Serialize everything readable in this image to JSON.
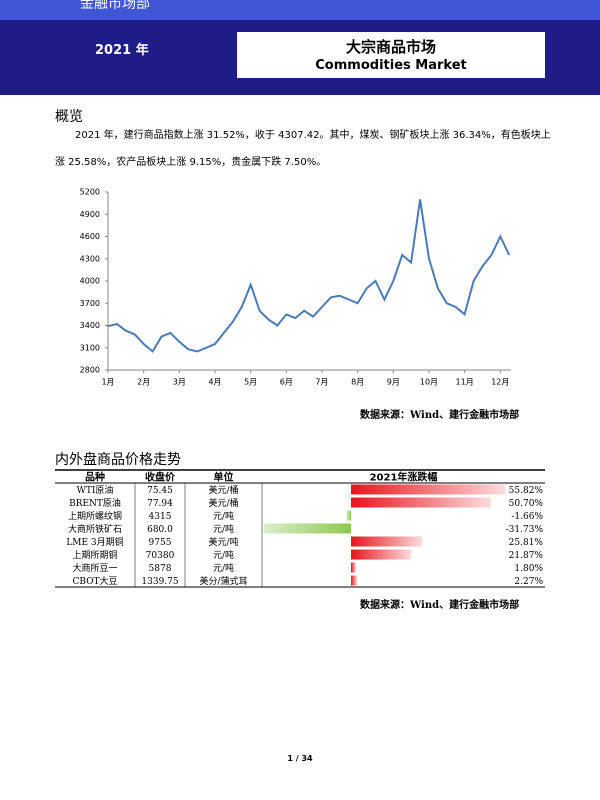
{
  "header": {
    "top": "金融市场部",
    "year": "2021 年",
    "title": "大宗商品市场",
    "subtitle": "Commodities Market"
  },
  "section1": {
    "heading": "概览",
    "lines": [
      "2021 年，建行商品指数上涨 31.52%，收于 4307.42。其中，煤炭、钢矿板块上涨 36.34%，有色板块上",
      "涨 25.58%，农产品板块上涨 9.15%，贵金属下跌 7.50%。"
    ]
  },
  "chart_data": {
    "type": "line",
    "x": [
      1,
      1.25,
      1.5,
      1.75,
      2,
      2.25,
      2.5,
      2.75,
      3,
      3.25,
      3.5,
      3.75,
      4,
      4.25,
      4.5,
      4.75,
      5,
      5.25,
      5.5,
      5.75,
      6,
      6.25,
      6.5,
      6.75,
      7,
      7.25,
      7.5,
      7.75,
      8,
      8.25,
      8.5,
      8.75,
      9,
      9.25,
      9.5,
      9.75,
      10,
      10.25,
      10.5,
      10.75,
      11,
      11.25,
      11.5,
      11.75,
      12,
      12.25
    ],
    "series": [
      {
        "color": "#4a7ab8",
        "values": [
          3390,
          3420,
          3330,
          3280,
          3150,
          3050,
          3250,
          3300,
          3180,
          3080,
          3050,
          3100,
          3150,
          3300,
          3450,
          3650,
          3950,
          3600,
          3480,
          3400,
          3550,
          3500,
          3600,
          3520,
          3650,
          3780,
          3800,
          3750,
          3700,
          3900,
          4000,
          3750,
          4000,
          4350,
          4250,
          5100,
          4300,
          3900,
          3700,
          3650,
          3550,
          4000,
          4200,
          4350,
          4600,
          4350
        ]
      }
    ],
    "xlim": [
      1,
      12.3
    ],
    "xticks": [
      {
        "value": 1,
        "label": "1月"
      },
      {
        "value": 2,
        "label": "2月"
      },
      {
        "value": 3,
        "label": "3月"
      },
      {
        "value": 4,
        "label": "4月"
      },
      {
        "value": 5,
        "label": "5月"
      },
      {
        "value": 6,
        "label": "6月"
      },
      {
        "value": 7,
        "label": "7月"
      },
      {
        "value": 8,
        "label": "8月"
      },
      {
        "value": 9,
        "label": "9月"
      },
      {
        "value": 10,
        "label": "10月"
      },
      {
        "value": 11,
        "label": "11月"
      },
      {
        "value": 12,
        "label": "12月"
      }
    ],
    "ylim": [
      2800,
      5200
    ],
    "yticks": [
      2800,
      3100,
      3400,
      3700,
      4000,
      4300,
      4600,
      4900,
      5200
    ],
    "grid": false
  },
  "source1": "数据来源：Wind、建行金融市场部",
  "section2": {
    "heading": "内外盘商品价格走势"
  },
  "table": {
    "columns": [
      "品种",
      "收盘价",
      "单位",
      "2021年涨跌幅"
    ],
    "rows": [
      [
        "WTI原油",
        "75.45",
        "美元/桶"
      ],
      [
        "BRENT原油",
        "77.94",
        "美元/桶"
      ],
      [
        "上期所螺纹钢",
        "4315",
        "元/吨"
      ],
      [
        "大商所铁矿石",
        "680.0",
        "元/吨"
      ],
      [
        "LME 3月期铜",
        "9755",
        "美元/吨"
      ],
      [
        "上期所期铜",
        "70380",
        "元/吨"
      ],
      [
        "大商所豆一",
        "5878",
        "元/吨"
      ],
      [
        "CBOT大豆",
        "1339.75",
        "美分/蒲式耳"
      ]
    ],
    "change": [
      55.82,
      50.7,
      -1.66,
      -31.73,
      25.81,
      21.87,
      1.8,
      2.27
    ],
    "change_labels": [
      "55.82%",
      "50.70%",
      "-1.66%",
      "-31.73%",
      "25.81%",
      "21.87%",
      "1.80%",
      "2.27%"
    ],
    "up_color": "#e8141c",
    "down_color": "#8cc850"
  },
  "source2": "数据来源：Wind、建行金融市场部",
  "footer": "1 / 34"
}
